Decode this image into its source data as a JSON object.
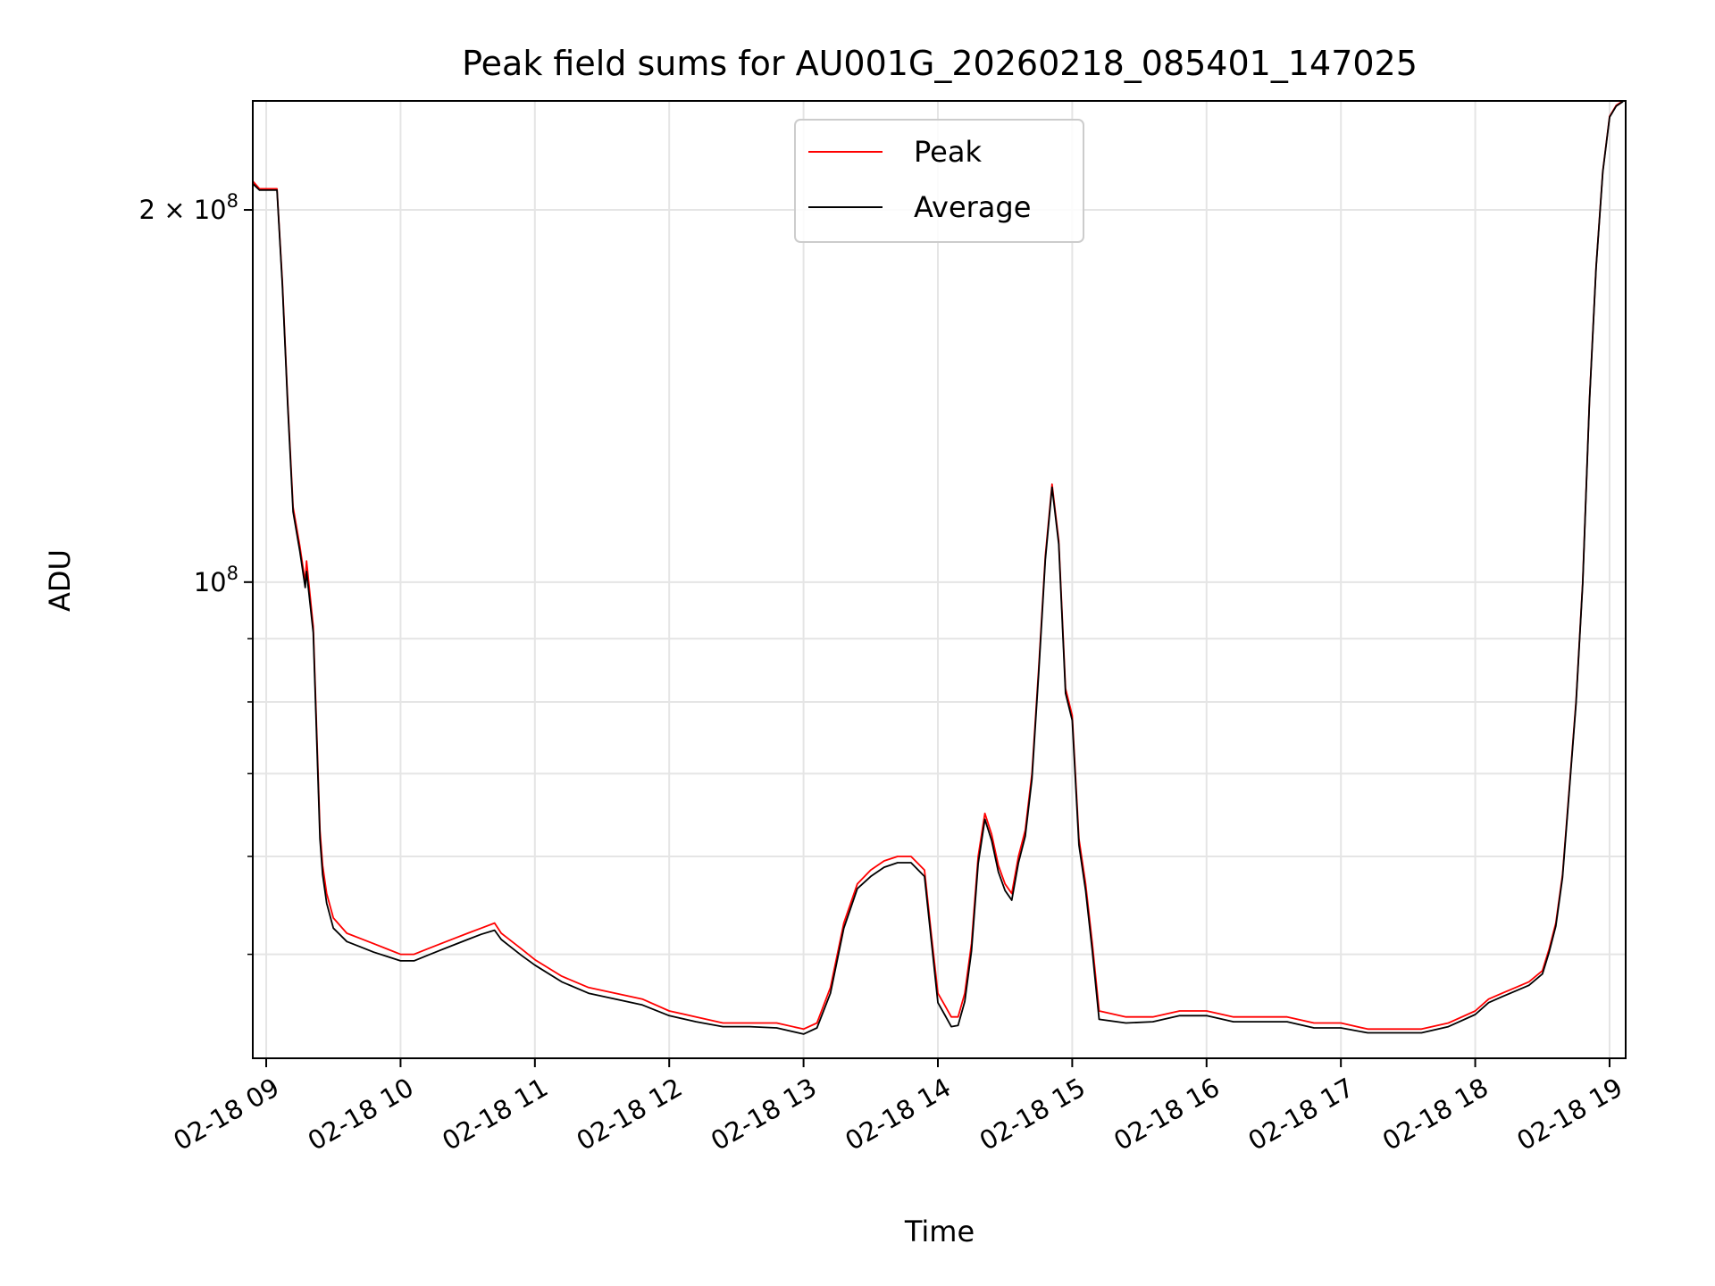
{
  "chart_data": {
    "type": "line",
    "title": "Peak field sums for AU001G_20260218_085401_147025",
    "xlabel": "Time",
    "ylabel": "ADU",
    "yscale": "log",
    "ylim": [
      41200000,
      245000000
    ],
    "xlim": [
      8.9,
      19.12
    ],
    "grid": true,
    "legend_position": "top-center",
    "x_ticks": [
      {
        "value": 9,
        "label": "02-18 09"
      },
      {
        "value": 10,
        "label": "02-18 10"
      },
      {
        "value": 11,
        "label": "02-18 11"
      },
      {
        "value": 12,
        "label": "02-18 12"
      },
      {
        "value": 13,
        "label": "02-18 13"
      },
      {
        "value": 14,
        "label": "02-18 14"
      },
      {
        "value": 15,
        "label": "02-18 15"
      },
      {
        "value": 16,
        "label": "02-18 16"
      },
      {
        "value": 17,
        "label": "02-18 17"
      },
      {
        "value": 18,
        "label": "02-18 18"
      },
      {
        "value": 19,
        "label": "02-18 19"
      }
    ],
    "y_major_ticks": [
      {
        "value": 100000000,
        "base": "10",
        "exp": "8",
        "mantissa": ""
      },
      {
        "value": 200000000,
        "base": "10",
        "exp": "8",
        "mantissa": "2 × "
      }
    ],
    "y_minor_ticks": [
      50000000,
      60000000,
      70000000,
      80000000,
      90000000
    ],
    "series": [
      {
        "name": "Peak",
        "color": "#ff0000",
        "x": [
          8.9,
          8.95,
          9.0,
          9.05,
          9.08,
          9.12,
          9.16,
          9.2,
          9.25,
          9.29,
          9.3,
          9.35,
          9.4,
          9.42,
          9.45,
          9.5,
          9.6,
          9.7,
          9.8,
          9.9,
          10.0,
          10.1,
          10.2,
          10.3,
          10.4,
          10.5,
          10.6,
          10.7,
          10.75,
          10.8,
          10.9,
          11.0,
          11.2,
          11.4,
          11.6,
          11.8,
          12.0,
          12.2,
          12.4,
          12.6,
          12.8,
          13.0,
          13.1,
          13.2,
          13.3,
          13.4,
          13.5,
          13.6,
          13.7,
          13.8,
          13.9,
          13.95,
          14.0,
          14.05,
          14.1,
          14.15,
          14.2,
          14.25,
          14.3,
          14.35,
          14.4,
          14.45,
          14.5,
          14.55,
          14.6,
          14.65,
          14.7,
          14.75,
          14.8,
          14.85,
          14.9,
          14.95,
          15.0,
          15.05,
          15.1,
          15.15,
          15.2,
          15.4,
          15.6,
          15.8,
          16.0,
          16.2,
          16.4,
          16.6,
          16.8,
          17.0,
          17.2,
          17.4,
          17.6,
          17.8,
          18.0,
          18.1,
          18.2,
          18.3,
          18.4,
          18.5,
          18.55,
          18.6,
          18.65,
          18.7,
          18.75,
          18.8,
          18.85,
          18.9,
          18.95,
          19.0,
          19.05,
          19.1
        ],
        "y": [
          211000000,
          208000000,
          208000000,
          208000000,
          208000000,
          175000000,
          140000000,
          115000000,
          107000000,
          100000000,
          104000000,
          92000000,
          63000000,
          59000000,
          56000000,
          53500000,
          52000000,
          51500000,
          51000000,
          50500000,
          50000000,
          50000000,
          50500000,
          51000000,
          51500000,
          52000000,
          52500000,
          53000000,
          52000000,
          51500000,
          50500000,
          49500000,
          48000000,
          47000000,
          46500000,
          46000000,
          45000000,
          44500000,
          44000000,
          44000000,
          44000000,
          43500000,
          44000000,
          47000000,
          53000000,
          57000000,
          58500000,
          59500000,
          60000000,
          60000000,
          58500000,
          52000000,
          46500000,
          45500000,
          44500000,
          44500000,
          46500000,
          51000000,
          60000000,
          65000000,
          62500000,
          59000000,
          57000000,
          56000000,
          60000000,
          63000000,
          70000000,
          85000000,
          105000000,
          120000000,
          108000000,
          82000000,
          78000000,
          62000000,
          57000000,
          51000000,
          45000000,
          44500000,
          44500000,
          45000000,
          45000000,
          44500000,
          44500000,
          44500000,
          44000000,
          44000000,
          43500000,
          43500000,
          43500000,
          44000000,
          45000000,
          46000000,
          46500000,
          47000000,
          47500000,
          48500000,
          50500000,
          53000000,
          58000000,
          68000000,
          80000000,
          100000000,
          140000000,
          180000000,
          215000000,
          238000000,
          243000000,
          245000000
        ]
      },
      {
        "name": "Average",
        "color": "#000000",
        "x": [
          8.9,
          8.95,
          9.0,
          9.05,
          9.08,
          9.12,
          9.16,
          9.2,
          9.25,
          9.29,
          9.3,
          9.35,
          9.4,
          9.42,
          9.45,
          9.5,
          9.6,
          9.7,
          9.8,
          9.9,
          10.0,
          10.1,
          10.2,
          10.3,
          10.4,
          10.5,
          10.6,
          10.7,
          10.75,
          10.8,
          10.9,
          11.0,
          11.2,
          11.4,
          11.6,
          11.8,
          12.0,
          12.2,
          12.4,
          12.6,
          12.8,
          13.0,
          13.1,
          13.2,
          13.3,
          13.4,
          13.5,
          13.6,
          13.7,
          13.8,
          13.9,
          13.95,
          14.0,
          14.05,
          14.1,
          14.15,
          14.2,
          14.25,
          14.3,
          14.35,
          14.4,
          14.45,
          14.5,
          14.55,
          14.6,
          14.65,
          14.7,
          14.75,
          14.8,
          14.85,
          14.9,
          14.95,
          15.0,
          15.05,
          15.1,
          15.15,
          15.2,
          15.4,
          15.6,
          15.8,
          16.0,
          16.2,
          16.4,
          16.6,
          16.8,
          17.0,
          17.2,
          17.4,
          17.6,
          17.8,
          18.0,
          18.1,
          18.2,
          18.3,
          18.4,
          18.5,
          18.55,
          18.6,
          18.65,
          18.7,
          18.75,
          18.8,
          18.85,
          18.9,
          18.95,
          19.0,
          19.05,
          19.1
        ],
        "y": [
          210000000,
          207500000,
          207500000,
          207500000,
          207500000,
          174000000,
          139000000,
          114000000,
          106000000,
          99000000,
          102000000,
          91000000,
          62000000,
          58000000,
          55000000,
          52500000,
          51200000,
          50700000,
          50200000,
          49800000,
          49400000,
          49400000,
          49900000,
          50400000,
          50900000,
          51400000,
          51900000,
          52300000,
          51400000,
          50900000,
          49900000,
          49000000,
          47500000,
          46500000,
          46000000,
          45500000,
          44600000,
          44100000,
          43700000,
          43700000,
          43600000,
          43100000,
          43600000,
          46500000,
          52500000,
          56500000,
          57800000,
          58800000,
          59300000,
          59300000,
          57800000,
          51400000,
          45700000,
          44700000,
          43700000,
          43800000,
          45800000,
          50300000,
          59200000,
          64300000,
          61800000,
          58300000,
          56300000,
          55300000,
          59300000,
          62300000,
          69300000,
          84300000,
          104300000,
          119300000,
          107300000,
          81300000,
          77300000,
          61300000,
          56300000,
          50300000,
          44300000,
          44000000,
          44100000,
          44600000,
          44600000,
          44100000,
          44100000,
          44100000,
          43600000,
          43600000,
          43200000,
          43200000,
          43200000,
          43700000,
          44700000,
          45700000,
          46200000,
          46700000,
          47200000,
          48200000,
          50200000,
          52700000,
          57700000,
          67700000,
          79700000,
          99700000,
          139700000,
          179700000,
          214700000,
          237700000,
          242700000,
          244700000
        ]
      }
    ]
  }
}
